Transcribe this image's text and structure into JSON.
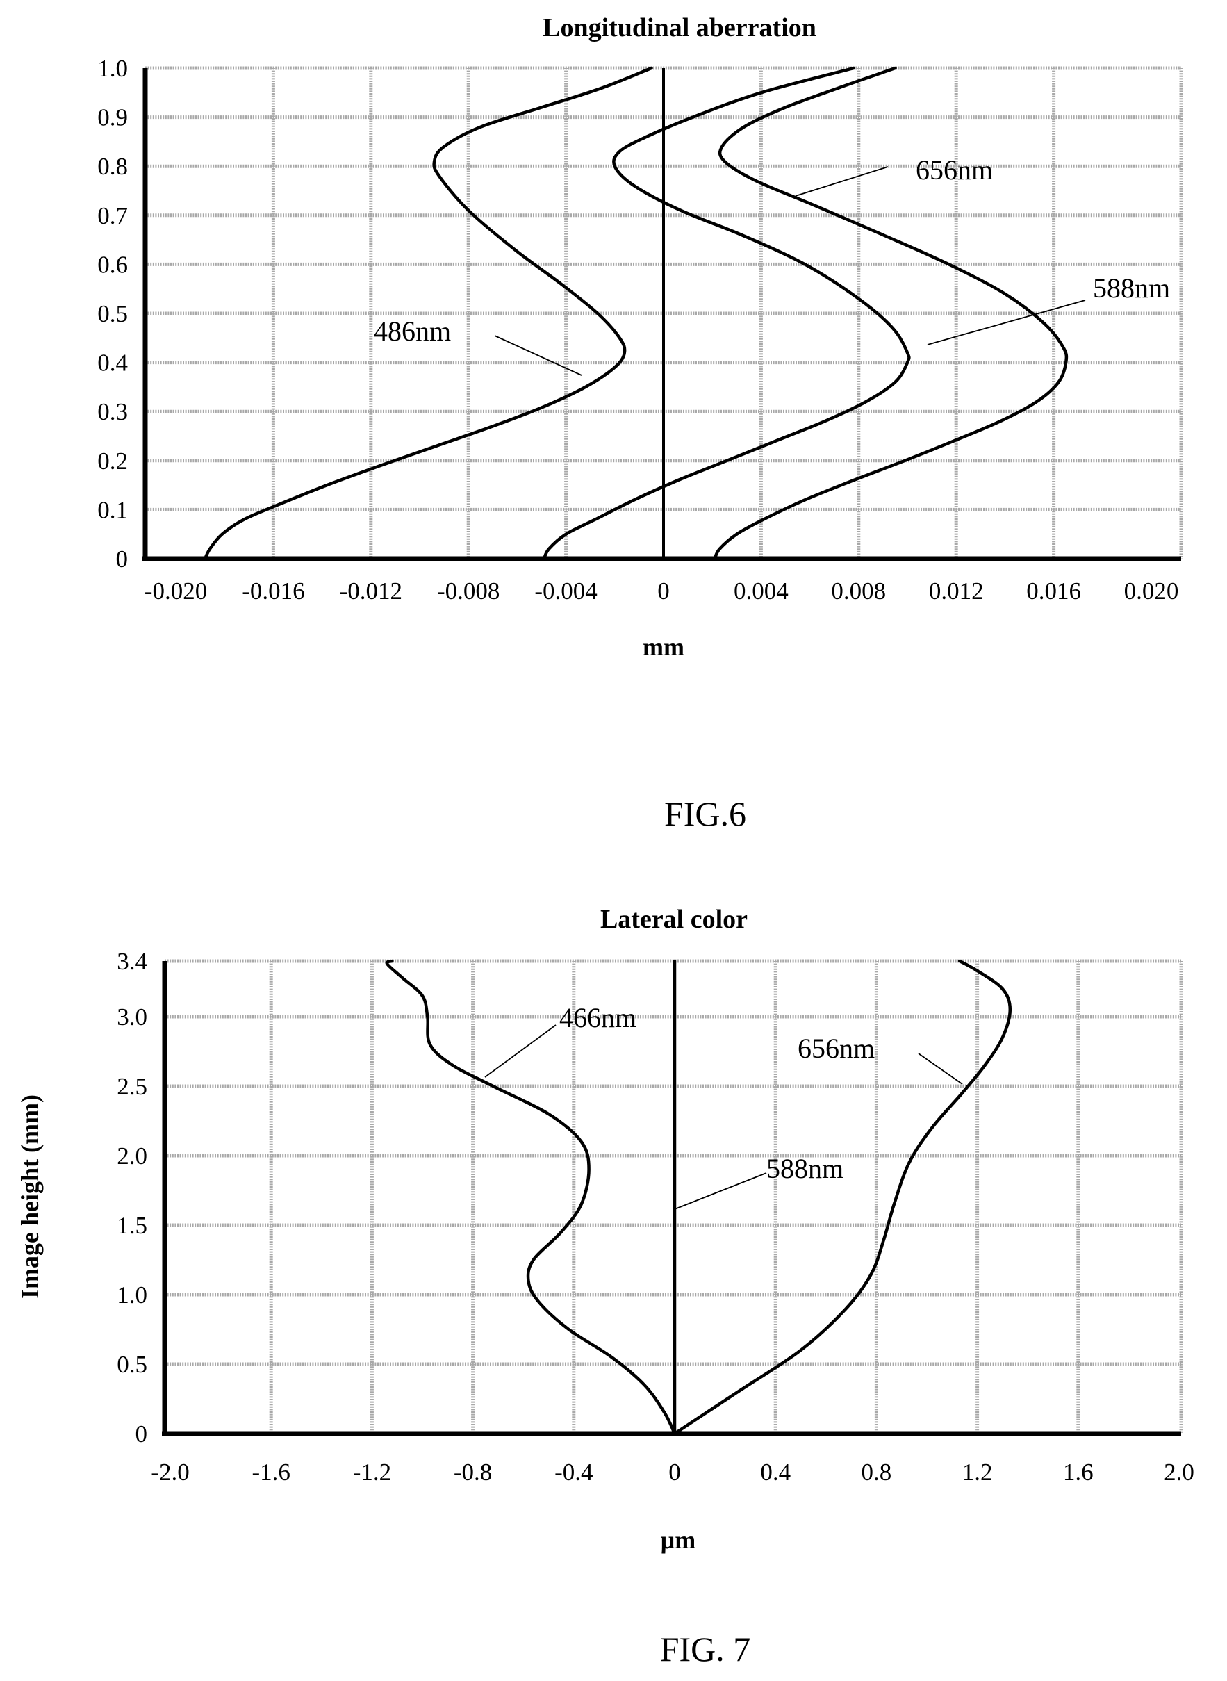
{
  "chart_data": [
    {
      "type": "line",
      "title": "Longitudinal aberration",
      "xlabel": "mm",
      "ylabel": "",
      "figure_label": "FIG.6",
      "xlim": [
        -0.02,
        0.02
      ],
      "ylim": [
        0,
        1.0
      ],
      "x_ticks": [
        "-0.020",
        "-0.016",
        "-0.012",
        "-0.008",
        "-0.004",
        "0",
        "0.004",
        "0.008",
        "0.012",
        "0.016",
        "0.020"
      ],
      "y_ticks": [
        "0",
        "0.1",
        "0.2",
        "0.3",
        "0.4",
        "0.5",
        "0.6",
        "0.7",
        "0.8",
        "0.9",
        "1.0"
      ],
      "grid": true,
      "series": [
        {
          "name": "486nm",
          "points": [
            [
              -0.0188,
              0
            ],
            [
              -0.0186,
              0.02
            ],
            [
              -0.0181,
              0.05
            ],
            [
              -0.0172,
              0.08
            ],
            [
              -0.0158,
              0.11
            ],
            [
              -0.0138,
              0.15
            ],
            [
              -0.0116,
              0.19
            ],
            [
              -0.0093,
              0.23
            ],
            [
              -0.007,
              0.27
            ],
            [
              -0.0049,
              0.31
            ],
            [
              -0.0032,
              0.35
            ],
            [
              -0.002,
              0.39
            ],
            [
              -0.0016,
              0.42
            ],
            [
              -0.0018,
              0.45
            ],
            [
              -0.0027,
              0.5
            ],
            [
              -0.0042,
              0.56
            ],
            [
              -0.0061,
              0.63
            ],
            [
              -0.008,
              0.71
            ],
            [
              -0.0092,
              0.78
            ],
            [
              -0.0094,
              0.81
            ],
            [
              -0.009,
              0.84
            ],
            [
              -0.0075,
              0.88
            ],
            [
              -0.005,
              0.92
            ],
            [
              -0.0025,
              0.96
            ],
            [
              -0.0005,
              1.0
            ]
          ]
        },
        {
          "name": "588nm",
          "points": [
            [
              -0.0049,
              0
            ],
            [
              -0.0047,
              0.02
            ],
            [
              -0.004,
              0.05
            ],
            [
              -0.0028,
              0.08
            ],
            [
              -0.0012,
              0.12
            ],
            [
              0.0006,
              0.16
            ],
            [
              0.0026,
              0.2
            ],
            [
              0.0046,
              0.24
            ],
            [
              0.0066,
              0.28
            ],
            [
              0.0083,
              0.32
            ],
            [
              0.0095,
              0.36
            ],
            [
              0.01,
              0.4
            ],
            [
              0.01,
              0.42
            ],
            [
              0.0094,
              0.47
            ],
            [
              0.008,
              0.53
            ],
            [
              0.0058,
              0.6
            ],
            [
              0.0032,
              0.66
            ],
            [
              0.0007,
              0.71
            ],
            [
              -0.0012,
              0.76
            ],
            [
              -0.002,
              0.8
            ],
            [
              -0.0018,
              0.83
            ],
            [
              -0.0007,
              0.86
            ],
            [
              0.0012,
              0.9
            ],
            [
              0.004,
              0.95
            ],
            [
              0.0078,
              1.0
            ]
          ]
        },
        {
          "name": "656nm",
          "points": [
            [
              0.0021,
              0
            ],
            [
              0.0023,
              0.02
            ],
            [
              0.003,
              0.05
            ],
            [
              0.0041,
              0.08
            ],
            [
              0.0058,
              0.12
            ],
            [
              0.0078,
              0.16
            ],
            [
              0.0099,
              0.2
            ],
            [
              0.0119,
              0.24
            ],
            [
              0.0138,
              0.28
            ],
            [
              0.0153,
              0.32
            ],
            [
              0.0162,
              0.36
            ],
            [
              0.0165,
              0.4
            ],
            [
              0.0164,
              0.43
            ],
            [
              0.0156,
              0.48
            ],
            [
              0.014,
              0.54
            ],
            [
              0.0117,
              0.6
            ],
            [
              0.009,
              0.66
            ],
            [
              0.0062,
              0.72
            ],
            [
              0.0038,
              0.77
            ],
            [
              0.0025,
              0.81
            ],
            [
              0.0024,
              0.84
            ],
            [
              0.0033,
              0.88
            ],
            [
              0.005,
              0.92
            ],
            [
              0.0072,
              0.96
            ],
            [
              0.0095,
              1.0
            ]
          ]
        }
      ],
      "annotations": [
        "656nm",
        "588nm",
        "486nm"
      ]
    },
    {
      "type": "line",
      "title": "Lateral color",
      "xlabel": "μm",
      "ylabel": "Image height (mm)",
      "figure_label": "FIG. 7",
      "xlim": [
        -2.0,
        2.0
      ],
      "ylim": [
        0,
        3.4
      ],
      "x_ticks": [
        "-2.0",
        "-1.6",
        "-1.2",
        "-0.8",
        "-0.4",
        "0",
        "0.4",
        "0.8",
        "1.2",
        "1.6",
        "2.0"
      ],
      "y_ticks": [
        "0",
        "0.5",
        "1.0",
        "1.5",
        "2.0",
        "2.5",
        "3.0",
        "3.4"
      ],
      "grid": true,
      "series": [
        {
          "name": "466nm",
          "points": [
            [
              0,
              0
            ],
            [
              -0.04,
              0.15
            ],
            [
              -0.12,
              0.35
            ],
            [
              -0.25,
              0.55
            ],
            [
              -0.42,
              0.75
            ],
            [
              -0.54,
              0.95
            ],
            [
              -0.58,
              1.1
            ],
            [
              -0.56,
              1.25
            ],
            [
              -0.45,
              1.45
            ],
            [
              -0.37,
              1.65
            ],
            [
              -0.34,
              1.9
            ],
            [
              -0.37,
              2.1
            ],
            [
              -0.5,
              2.3
            ],
            [
              -0.72,
              2.5
            ],
            [
              -0.88,
              2.65
            ],
            [
              -0.97,
              2.8
            ],
            [
              -0.98,
              3.0
            ],
            [
              -1.0,
              3.15
            ],
            [
              -1.08,
              3.28
            ],
            [
              -1.14,
              3.38
            ],
            [
              -1.12,
              3.4
            ]
          ]
        },
        {
          "name": "588nm",
          "points": [
            [
              0,
              0
            ],
            [
              0,
              3.4
            ]
          ]
        },
        {
          "name": "656nm",
          "points": [
            [
              0,
              0
            ],
            [
              0.25,
              0.3
            ],
            [
              0.5,
              0.6
            ],
            [
              0.68,
              0.9
            ],
            [
              0.78,
              1.15
            ],
            [
              0.83,
              1.4
            ],
            [
              0.87,
              1.65
            ],
            [
              0.93,
              1.95
            ],
            [
              1.02,
              2.2
            ],
            [
              1.14,
              2.45
            ],
            [
              1.23,
              2.65
            ],
            [
              1.3,
              2.85
            ],
            [
              1.33,
              3.05
            ],
            [
              1.3,
              3.2
            ],
            [
              1.2,
              3.33
            ],
            [
              1.13,
              3.4
            ]
          ]
        }
      ],
      "annotations": [
        "466nm",
        "588nm",
        "656nm"
      ]
    }
  ]
}
